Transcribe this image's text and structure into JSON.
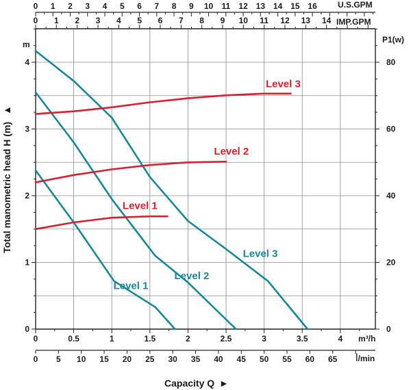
{
  "chart_data": {
    "type": "line",
    "title": "",
    "ylabel": "Total manometric head H (m)",
    "ylabel_arrow": "▲",
    "xlabel": "Capacity Q",
    "xlabel_arrow": "►",
    "y_unit": "m",
    "ylim": [
      0,
      4.5
    ],
    "y_ticks": [
      0,
      1,
      2,
      3,
      4
    ],
    "y2_unit": "P1(w)",
    "y2lim": [
      0,
      90
    ],
    "y2_ticks": [
      0,
      20,
      40,
      60,
      80
    ],
    "x_m3h": {
      "unit": "m³/h",
      "range": [
        0,
        4.5
      ],
      "ticks": [
        "0",
        "0.5",
        "1",
        "1.5",
        "2",
        "2.5",
        "3",
        "3.5",
        "4"
      ],
      "tick_values": [
        0,
        0.5,
        1,
        1.5,
        2,
        2.5,
        3,
        3.5,
        4
      ]
    },
    "x_lmin": {
      "unit": "l/min",
      "unit_prefix": "l",
      "unit_suffix": "/min",
      "ticks": [
        "0",
        "5",
        "10",
        "15",
        "20",
        "25",
        "30",
        "35",
        "40",
        "45",
        "50",
        "55",
        "60",
        "65"
      ],
      "tick_values": [
        0,
        5,
        10,
        15,
        20,
        25,
        30,
        35,
        40,
        45,
        50,
        55,
        60,
        65
      ]
    },
    "x_usgpm": {
      "unit": "U.S.GPM",
      "ticks": [
        "0",
        "1",
        "2",
        "3",
        "4",
        "5",
        "6",
        "7",
        "8",
        "9",
        "10",
        "11",
        "12",
        "13",
        "14",
        "15",
        "16"
      ],
      "tick_values": [
        0,
        1,
        2,
        3,
        4,
        5,
        6,
        7,
        8,
        9,
        10,
        11,
        12,
        13,
        14,
        15,
        16
      ]
    },
    "x_impgpm": {
      "unit": "IMP.GPM",
      "ticks": [
        "0",
        "1",
        "2",
        "3",
        "4",
        "5",
        "6",
        "7",
        "8",
        "9",
        "10",
        "11",
        "12",
        "13",
        "14"
      ],
      "tick_values": [
        0,
        1,
        2,
        3,
        4,
        5,
        6,
        7,
        8,
        9,
        10,
        11,
        12,
        13,
        14
      ]
    },
    "series": [
      {
        "name": "Level 1",
        "kind": "head",
        "color": "#16879a",
        "x": [
          0,
          0.5,
          1.03,
          1.57,
          1.83
        ],
        "y": [
          2.38,
          1.6,
          0.72,
          0.33,
          0
        ]
      },
      {
        "name": "Level 2",
        "kind": "head",
        "color": "#16879a",
        "x": [
          0,
          0.5,
          1,
          1.57,
          2,
          2.63
        ],
        "y": [
          3.55,
          2.8,
          1.95,
          1.1,
          0.7,
          0
        ]
      },
      {
        "name": "Level 3",
        "kind": "head",
        "color": "#16879a",
        "x": [
          0,
          0.5,
          1,
          1.5,
          2,
          2.5,
          3.05,
          3.57
        ],
        "y": [
          4.17,
          3.72,
          3.17,
          2.28,
          1.62,
          1.2,
          0.72,
          0
        ]
      },
      {
        "name": "Level 1",
        "kind": "power",
        "color": "#d42031",
        "x": [
          0,
          0.5,
          1,
          1.5,
          1.73
        ],
        "y": [
          30,
          32,
          33.4,
          33.8,
          33.8
        ]
      },
      {
        "name": "Level 2",
        "kind": "power",
        "color": "#d42031",
        "x": [
          0,
          0.5,
          1,
          1.5,
          2,
          2.5
        ],
        "y": [
          44,
          46.2,
          47.9,
          49.2,
          50,
          50.2
        ]
      },
      {
        "name": "Level 3",
        "kind": "power",
        "color": "#d42031",
        "x": [
          0,
          0.5,
          1,
          1.5,
          2,
          2.5,
          3,
          3.35
        ],
        "y": [
          64.5,
          65.3,
          66.5,
          68,
          69.2,
          70.1,
          70.6,
          70.6
        ]
      }
    ],
    "annotations": [
      {
        "text": "Level 1",
        "color": "#16879a",
        "x": 1.25,
        "y": 0.6
      },
      {
        "text": "Level 2",
        "color": "#16879a",
        "x": 2.05,
        "y": 0.75
      },
      {
        "text": "Level 3",
        "color": "#16879a",
        "x": 2.95,
        "y": 1.08
      },
      {
        "text": "Level 1",
        "color": "#d42031",
        "x": 1.37,
        "y": 36
      },
      {
        "text": "Level 2",
        "color": "#d42031",
        "x": 2.57,
        "y": 52.3
      },
      {
        "text": "Level 3",
        "color": "#d42031",
        "x": 3.25,
        "y": 72.5
      }
    ]
  }
}
